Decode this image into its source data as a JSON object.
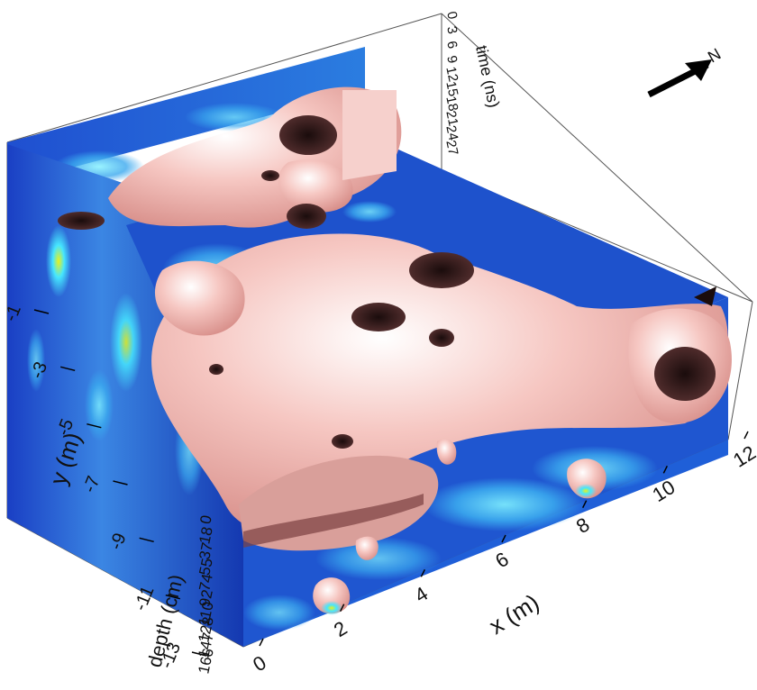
{
  "chart_data": {
    "type": "3d-volume",
    "colors": {
      "slice_low": "#0a2fb5",
      "slice_mid": "#2f8fe0",
      "slice_high_cyan": "#46e6ff",
      "slice_peak_yellow": "#e8f21c",
      "isosurface": "#f3b8b3",
      "isosurface_shadow": "#3a1c1c"
    },
    "x_axis": {
      "label": "x (m)",
      "ticks": [
        0,
        2,
        4,
        6,
        8,
        10,
        12
      ],
      "tick_labels": [
        "0",
        "2",
        "4",
        "6",
        "8",
        "10",
        "12"
      ],
      "range": [
        0,
        12
      ]
    },
    "y_axis": {
      "label": "y (m)",
      "ticks": [
        -1,
        -3,
        -5,
        -7,
        -9,
        -11,
        -13
      ],
      "tick_labels": [
        "-1",
        "-3",
        "-5",
        "-7",
        "-9",
        "-11",
        "-13"
      ],
      "range": [
        -13,
        0
      ]
    },
    "depth_axis": {
      "label": "depth (cm)",
      "ticks": [
        0,
        18,
        37,
        55,
        74,
        92,
        110,
        128,
        147,
        166
      ],
      "tick_labels": [
        "0",
        "18",
        "37",
        "55",
        "74",
        "92",
        "110",
        "128",
        "147",
        "166"
      ]
    },
    "time_axis": {
      "label": "time (ns)",
      "ticks": [
        0,
        3,
        6,
        9,
        12,
        15,
        18,
        21,
        24,
        27
      ],
      "tick_labels": [
        "0",
        "3",
        "6",
        "9",
        "12",
        "15",
        "18",
        "21",
        "24",
        "27"
      ]
    },
    "north_arrow": {
      "label": "N"
    }
  }
}
